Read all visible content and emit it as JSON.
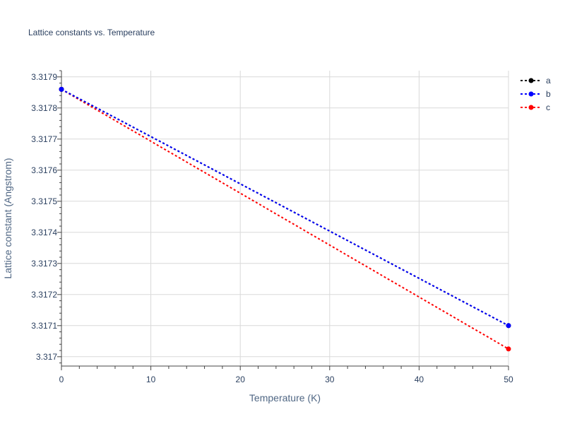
{
  "chart_data": {
    "type": "line",
    "title": "Lattice constants vs. Temperature",
    "xlabel": "Temperature (K)",
    "ylabel": "Lattice constant (Angstrom)",
    "xlim": [
      0,
      50
    ],
    "ylim": [
      3.31697,
      3.31792
    ],
    "xticks": [
      0,
      10,
      20,
      30,
      40,
      50
    ],
    "yticks": [
      3.317,
      3.3171,
      3.3172,
      3.3173,
      3.3174,
      3.3175,
      3.3176,
      3.3177,
      3.3178,
      3.3179
    ],
    "ytick_labels": [
      "3.317",
      "3.3171",
      "3.3172",
      "3.3173",
      "3.3174",
      "3.3175",
      "3.3176",
      "3.3177",
      "3.3178",
      "3.3179"
    ],
    "grid": true,
    "legend_position": "top-right",
    "series": [
      {
        "name": "a",
        "color": "#000000",
        "x": [
          0,
          50
        ],
        "y": [
          3.31786,
          3.3171
        ]
      },
      {
        "name": "b",
        "color": "#0000ff",
        "x": [
          0,
          50
        ],
        "y": [
          3.31786,
          3.3171
        ]
      },
      {
        "name": "c",
        "color": "#ff0000",
        "x": [
          0,
          50
        ],
        "y": [
          3.31786,
          3.317025
        ]
      }
    ]
  }
}
